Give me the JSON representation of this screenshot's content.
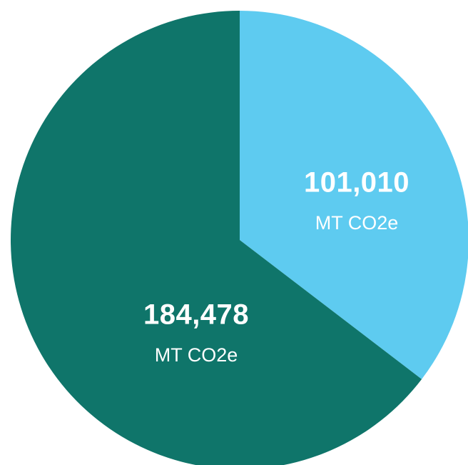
{
  "chart_data": {
    "type": "pie",
    "values": [
      101010,
      184478
    ],
    "value_labels": [
      "101,010",
      "184,478"
    ],
    "unit_labels": [
      "MT CO2e",
      "MT CO2e"
    ],
    "colors": [
      "#5ecbf0",
      "#0f756a"
    ]
  }
}
